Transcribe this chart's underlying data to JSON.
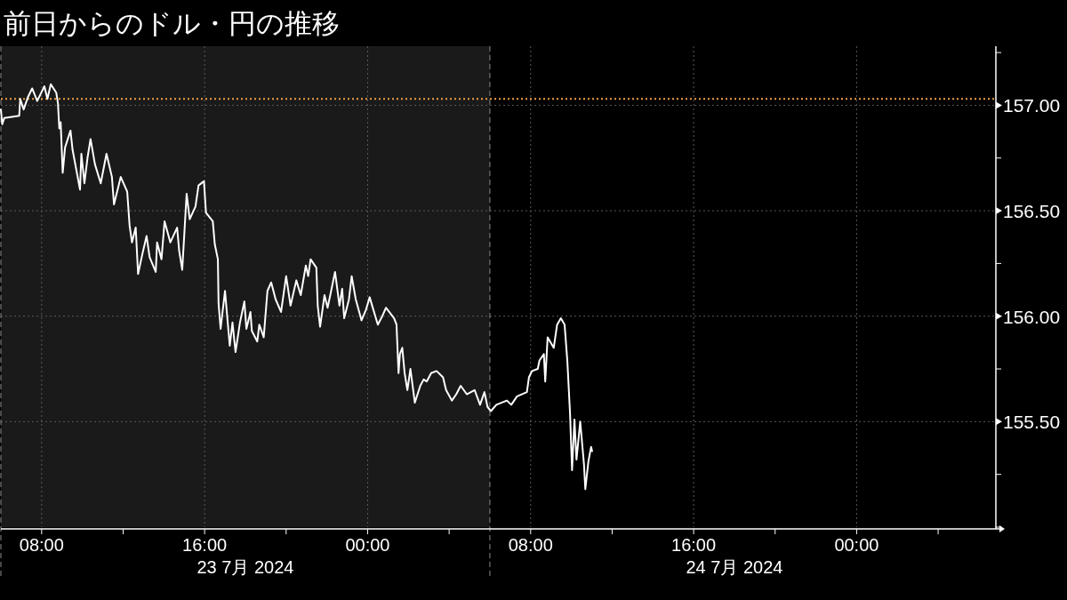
{
  "chart_data": {
    "type": "line",
    "title": "前日からのドル・円の推移",
    "x": [
      "2024-07-23T06:00",
      "2024-07-23T06:04",
      "2024-07-23T06:10",
      "2024-07-23T06:54",
      "2024-07-23T06:57",
      "2024-07-23T07:07",
      "2024-07-23T07:20",
      "2024-07-23T07:32",
      "2024-07-23T07:47",
      "2024-07-23T08:08",
      "2024-07-23T08:17",
      "2024-07-23T08:27",
      "2024-07-23T08:43",
      "2024-07-23T08:48",
      "2024-07-23T08:52",
      "2024-07-23T08:56",
      "2024-07-23T09:02",
      "2024-07-23T09:09",
      "2024-07-23T09:25",
      "2024-07-23T09:31",
      "2024-07-23T09:53",
      "2024-07-23T09:57",
      "2024-07-23T10:06",
      "2024-07-23T10:15",
      "2024-07-23T10:24",
      "2024-07-23T10:37",
      "2024-07-23T10:54",
      "2024-07-23T11:11",
      "2024-07-23T11:27",
      "2024-07-23T11:33",
      "2024-07-23T11:53",
      "2024-07-23T12:12",
      "2024-07-23T12:19",
      "2024-07-23T12:26",
      "2024-07-23T12:37",
      "2024-07-23T12:44",
      "2024-07-23T12:56",
      "2024-07-23T13:09",
      "2024-07-23T13:18",
      "2024-07-23T13:36",
      "2024-07-23T13:40",
      "2024-07-23T13:53",
      "2024-07-23T14:02",
      "2024-07-23T14:19",
      "2024-07-23T14:39",
      "2024-07-23T14:45",
      "2024-07-23T14:54",
      "2024-07-23T15:07",
      "2024-07-23T15:16",
      "2024-07-23T15:33",
      "2024-07-23T15:42",
      "2024-07-23T15:58",
      "2024-07-23T16:04",
      "2024-07-23T16:24",
      "2024-07-23T16:30",
      "2024-07-23T16:39",
      "2024-07-23T16:41",
      "2024-07-23T16:47",
      "2024-07-23T17:00",
      "2024-07-23T17:08",
      "2024-07-23T17:14",
      "2024-07-23T17:22",
      "2024-07-23T17:31",
      "2024-07-23T17:44",
      "2024-07-23T17:57",
      "2024-07-23T18:03",
      "2024-07-23T18:15",
      "2024-07-23T18:19",
      "2024-07-23T18:35",
      "2024-07-23T18:41",
      "2024-07-23T18:54",
      "2024-07-23T19:05",
      "2024-07-23T19:16",
      "2024-07-23T19:29",
      "2024-07-23T19:45",
      "2024-07-23T20:00",
      "2024-07-23T20:13",
      "2024-07-23T20:30",
      "2024-07-23T20:43",
      "2024-07-23T20:58",
      "2024-07-23T21:05",
      "2024-07-23T21:12",
      "2024-07-23T21:29",
      "2024-07-23T21:33",
      "2024-07-23T21:40",
      "2024-07-23T21:53",
      "2024-07-23T22:02",
      "2024-07-23T22:10",
      "2024-07-23T22:24",
      "2024-07-23T22:37",
      "2024-07-23T22:45",
      "2024-07-23T22:51",
      "2024-07-23T23:05",
      "2024-07-23T23:13",
      "2024-07-23T23:25",
      "2024-07-23T23:42",
      "2024-07-23T23:55",
      "2024-07-24T00:06",
      "2024-07-24T00:17",
      "2024-07-24T00:30",
      "2024-07-24T00:43",
      "2024-07-24T00:54",
      "2024-07-24T01:18",
      "2024-07-24T01:25",
      "2024-07-24T01:31",
      "2024-07-24T01:35",
      "2024-07-24T01:42",
      "2024-07-24T01:49",
      "2024-07-24T01:57",
      "2024-07-24T02:06",
      "2024-07-24T02:19",
      "2024-07-24T02:35",
      "2024-07-24T02:45",
      "2024-07-24T02:54",
      "2024-07-24T03:07",
      "2024-07-24T03:23",
      "2024-07-24T03:42",
      "2024-07-24T03:51",
      "2024-07-24T04:08",
      "2024-07-24T04:21",
      "2024-07-24T04:34",
      "2024-07-24T04:52",
      "2024-07-24T05:15",
      "2024-07-24T05:31",
      "2024-07-24T05:44",
      "2024-07-24T05:53",
      "2024-07-24T06:03",
      "2024-07-24T06:19",
      "2024-07-24T06:50",
      "2024-07-24T07:03",
      "2024-07-24T07:20",
      "2024-07-24T07:49",
      "2024-07-24T07:55",
      "2024-07-24T08:04",
      "2024-07-24T08:21",
      "2024-07-24T08:26",
      "2024-07-24T08:39",
      "2024-07-24T08:43",
      "2024-07-24T08:50",
      "2024-07-24T09:08",
      "2024-07-24T09:18",
      "2024-07-24T09:29",
      "2024-07-24T09:40",
      "2024-07-24T09:48",
      "2024-07-24T09:56",
      "2024-07-24T10:02",
      "2024-07-24T10:09",
      "2024-07-24T10:15",
      "2024-07-24T10:26",
      "2024-07-24T10:37",
      "2024-07-24T10:41",
      "2024-07-24T10:50",
      "2024-07-24T10:58",
      "2024-07-24T11:01"
    ],
    "series": [
      {
        "color": "#ffffff",
        "values": [
          156.98,
          156.91,
          156.94,
          156.95,
          157.03,
          156.98,
          157.04,
          157.08,
          157.02,
          157.09,
          157.03,
          157.1,
          157.06,
          157.01,
          156.89,
          156.92,
          156.68,
          156.8,
          156.88,
          156.79,
          156.6,
          156.77,
          156.63,
          156.75,
          156.84,
          156.72,
          156.63,
          156.77,
          156.66,
          156.53,
          156.66,
          156.59,
          156.43,
          156.35,
          156.42,
          156.2,
          156.29,
          156.38,
          156.28,
          156.21,
          156.35,
          156.27,
          156.45,
          156.35,
          156.42,
          156.31,
          156.22,
          156.58,
          156.46,
          156.52,
          156.62,
          156.64,
          156.49,
          156.45,
          156.34,
          156.27,
          156.06,
          155.94,
          156.12,
          155.97,
          155.86,
          155.97,
          155.83,
          155.97,
          156.07,
          155.94,
          156.02,
          155.93,
          155.88,
          155.96,
          155.9,
          156.12,
          156.16,
          156.08,
          156.02,
          156.19,
          156.05,
          156.17,
          156.1,
          156.24,
          156.19,
          156.27,
          156.23,
          156.05,
          155.95,
          156.1,
          156.04,
          156.1,
          156.21,
          156.05,
          156.13,
          155.99,
          156.08,
          156.19,
          156.08,
          155.98,
          156.03,
          156.09,
          156.03,
          155.96,
          156.0,
          156.04,
          155.99,
          155.96,
          155.73,
          155.82,
          155.85,
          155.73,
          155.65,
          155.75,
          155.59,
          155.67,
          155.7,
          155.69,
          155.73,
          155.74,
          155.71,
          155.65,
          155.6,
          155.63,
          155.67,
          155.63,
          155.65,
          155.58,
          155.64,
          155.57,
          155.55,
          155.58,
          155.6,
          155.58,
          155.62,
          155.64,
          155.71,
          155.74,
          155.75,
          155.79,
          155.82,
          155.69,
          155.9,
          155.85,
          155.96,
          155.99,
          155.96,
          155.79,
          155.54,
          155.27,
          155.51,
          155.32,
          155.5,
          155.3,
          155.18,
          155.31,
          155.38,
          155.36
        ]
      }
    ],
    "xlim": [
      "2024-07-23T06:00",
      "2024-07-25T06:50"
    ],
    "xticks": [
      {
        "value": "2024-07-23T08:00",
        "label": "08:00"
      },
      {
        "value": "2024-07-23T12:00",
        "label": null
      },
      {
        "value": "2024-07-23T16:00",
        "label": "16:00"
      },
      {
        "value": "2024-07-23T20:00",
        "label": null
      },
      {
        "value": "2024-07-24T00:00",
        "label": "00:00"
      },
      {
        "value": "2024-07-24T04:00",
        "label": null
      },
      {
        "value": "2024-07-24T08:00",
        "label": "08:00"
      },
      {
        "value": "2024-07-24T12:00",
        "label": null
      },
      {
        "value": "2024-07-24T16:00",
        "label": "16:00"
      },
      {
        "value": "2024-07-24T20:00",
        "label": null
      },
      {
        "value": "2024-07-25T00:00",
        "label": "00:00"
      },
      {
        "value": "2024-07-25T04:00",
        "label": null
      }
    ],
    "ylim": [
      155.0,
      157.28
    ],
    "yticks": [
      {
        "value": 155.0,
        "label": null
      },
      {
        "value": 155.25,
        "label": null
      },
      {
        "value": 155.5,
        "label": "155.50"
      },
      {
        "value": 155.75,
        "label": null
      },
      {
        "value": 156.0,
        "label": "156.00"
      },
      {
        "value": 156.25,
        "label": null
      },
      {
        "value": 156.5,
        "label": "156.50"
      },
      {
        "value": 156.75,
        "label": null
      },
      {
        "value": 157.0,
        "label": "157.00"
      },
      {
        "value": 157.25,
        "label": null
      }
    ],
    "grid": true,
    "bands": [
      {
        "axis": "x",
        "from": "2024-07-23T06:00",
        "to": "2024-07-24T06:00",
        "color": "#1a1a1a"
      }
    ],
    "ref_lines": [
      {
        "axis": "y",
        "value": 157.03,
        "color": "#f0a040",
        "line_style": "dotted"
      },
      {
        "axis": "x",
        "value": "2024-07-23T06:00",
        "color": "#8a8a8a",
        "line_style": "dashed"
      },
      {
        "axis": "x",
        "value": "2024-07-24T06:00",
        "color": "#8a8a8a",
        "line_style": "dashed"
      }
    ],
    "annotations": [
      "23 7月 2024",
      "24 7月 2024"
    ]
  }
}
